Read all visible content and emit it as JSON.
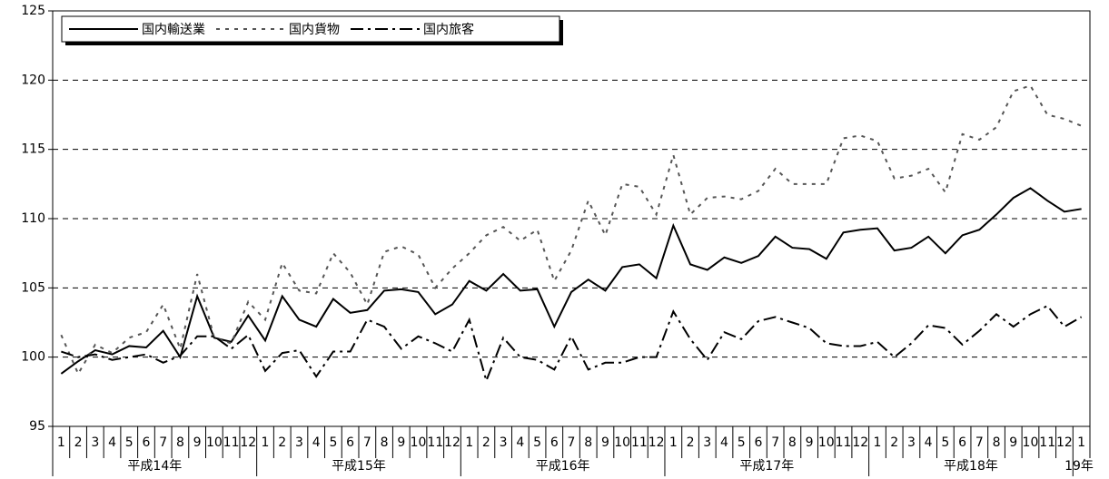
{
  "chart_data": {
    "type": "line",
    "categories": [
      "1",
      "2",
      "3",
      "4",
      "5",
      "6",
      "7",
      "8",
      "9",
      "10",
      "11",
      "12",
      "1",
      "2",
      "3",
      "4",
      "5",
      "6",
      "7",
      "8",
      "9",
      "10",
      "11",
      "12",
      "1",
      "2",
      "3",
      "4",
      "5",
      "6",
      "7",
      "8",
      "9",
      "10",
      "11",
      "12",
      "1",
      "2",
      "3",
      "4",
      "5",
      "6",
      "7",
      "8",
      "9",
      "10",
      "11",
      "12",
      "1",
      "2",
      "3",
      "4",
      "5",
      "6",
      "7",
      "8",
      "9",
      "10",
      "11",
      "12",
      "1"
    ],
    "groups": [
      "平成14年",
      "平成15年",
      "平成16年",
      "平成17年",
      "平成18年",
      "19年"
    ],
    "series": [
      {
        "name": "国内輸送業",
        "color": "#000000",
        "dash": "solid",
        "values": [
          98.8,
          99.7,
          100.5,
          100.2,
          100.8,
          100.7,
          101.9,
          100.0,
          104.4,
          101.4,
          101.1,
          103.0,
          101.2,
          104.4,
          102.7,
          102.2,
          104.2,
          103.2,
          103.4,
          104.8,
          104.9,
          104.7,
          103.1,
          103.8,
          105.5,
          104.8,
          106.0,
          104.8,
          104.9,
          102.2,
          104.7,
          105.6,
          104.8,
          106.5,
          106.7,
          105.7,
          109.5,
          106.7,
          106.3,
          107.2,
          106.8,
          107.3,
          108.7,
          107.9,
          107.8,
          107.1,
          109.0,
          109.2,
          109.3,
          107.7,
          107.9,
          108.7,
          107.5,
          108.8,
          109.2,
          110.3,
          111.5,
          112.2,
          111.3,
          110.5,
          110.7
        ]
      },
      {
        "name": "国内貨物",
        "color": "#555555",
        "dash": "dotted",
        "values": [
          101.6,
          98.8,
          100.9,
          100.3,
          101.4,
          101.8,
          103.8,
          100.6,
          106.0,
          101.4,
          101.0,
          104.0,
          102.7,
          106.8,
          104.8,
          104.6,
          107.5,
          106.1,
          103.8,
          107.6,
          108.0,
          107.4,
          105.0,
          106.4,
          107.5,
          108.8,
          109.4,
          108.4,
          109.2,
          105.5,
          107.7,
          111.3,
          108.8,
          112.5,
          112.3,
          110.3,
          114.6,
          110.3,
          111.5,
          111.6,
          111.4,
          112.0,
          113.6,
          112.5,
          112.5,
          112.5,
          115.8,
          116.0,
          115.6,
          112.9,
          113.1,
          113.6,
          111.9,
          116.1,
          115.7,
          116.6,
          119.2,
          119.6,
          117.5,
          117.2,
          116.7
        ]
      },
      {
        "name": "国内旅客",
        "color": "#000000",
        "dash": "dashdot",
        "values": [
          100.4,
          100.0,
          100.2,
          99.8,
          100.0,
          100.2,
          99.6,
          100.1,
          101.5,
          101.5,
          100.6,
          101.6,
          99.0,
          100.3,
          100.5,
          98.6,
          100.4,
          100.4,
          102.7,
          102.2,
          100.6,
          101.5,
          101.0,
          100.4,
          102.7,
          98.3,
          101.4,
          100.0,
          99.8,
          99.1,
          101.5,
          99.1,
          99.6,
          99.6,
          100.0,
          100.0,
          103.3,
          101.3,
          99.8,
          101.8,
          101.3,
          102.6,
          102.9,
          102.5,
          102.1,
          101.0,
          100.8,
          100.8,
          101.1,
          100.0,
          101.0,
          102.3,
          102.1,
          100.9,
          101.9,
          103.1,
          102.2,
          103.1,
          103.7,
          102.2,
          102.9
        ]
      }
    ],
    "ylim": [
      95,
      125
    ],
    "yticks": [
      95,
      100,
      105,
      110,
      115,
      120,
      125
    ],
    "grid": true,
    "legend": "top-left"
  }
}
